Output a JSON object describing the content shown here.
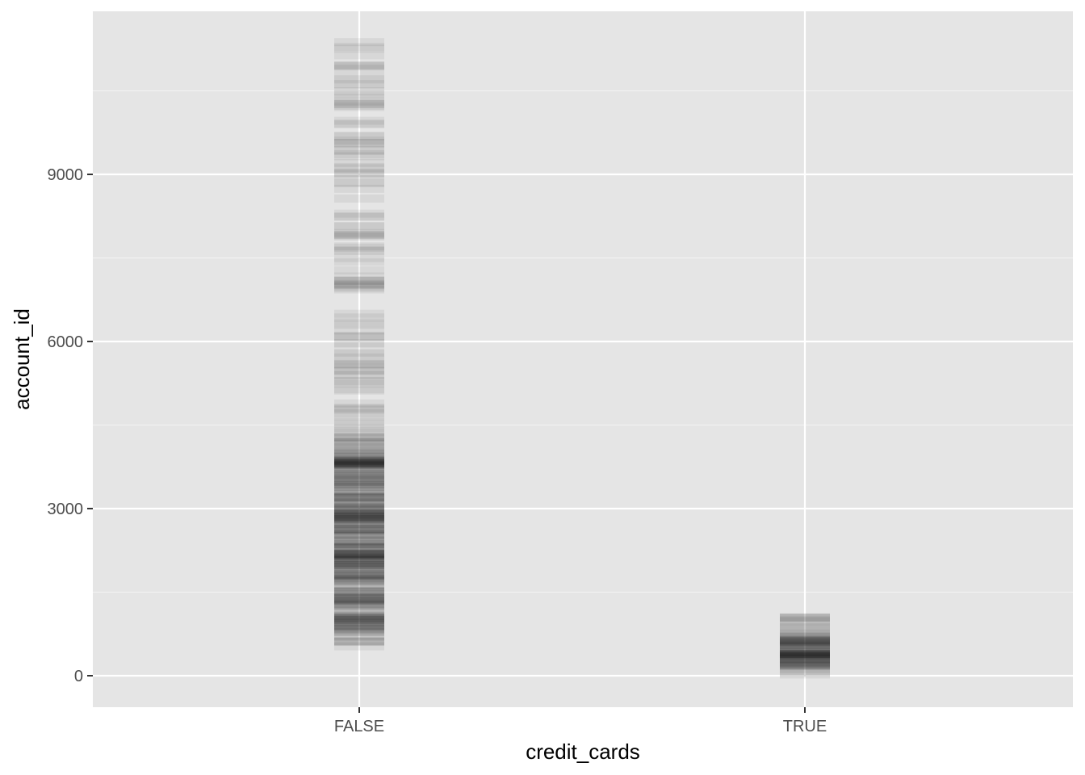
{
  "chart_data": {
    "type": "scatter",
    "title": "",
    "xlabel": "credit_cards",
    "ylabel": "account_id",
    "categories": [
      "FALSE",
      "TRUE"
    ],
    "x_tick_labels": [
      "FALSE",
      "TRUE"
    ],
    "y_ticks": [
      0,
      3000,
      6000,
      9000
    ],
    "y_tick_labels": [
      "0",
      "3000",
      "6000",
      "9000"
    ],
    "ylim": [
      -550,
      11930
    ],
    "grid": true,
    "legend": "none",
    "point_shape": "horizontal dash, semi-transparent black",
    "point_opacity": 0.06,
    "series": [
      {
        "category": "FALSE",
        "density_profile": [
          {
            "from": 450,
            "to": 700,
            "count": 6
          },
          {
            "from": 700,
            "to": 1500,
            "count": 55
          },
          {
            "from": 1500,
            "to": 2500,
            "count": 80
          },
          {
            "from": 2500,
            "to": 3500,
            "count": 80
          },
          {
            "from": 3500,
            "to": 3900,
            "count": 40
          },
          {
            "from": 3900,
            "to": 4500,
            "count": 22
          },
          {
            "from": 4500,
            "to": 5000,
            "count": 8
          },
          {
            "from": 5000,
            "to": 5600,
            "count": 12
          },
          {
            "from": 5600,
            "to": 6300,
            "count": 10
          },
          {
            "from": 6300,
            "to": 6700,
            "count": 4
          },
          {
            "from": 6700,
            "to": 7100,
            "count": 9
          },
          {
            "from": 7100,
            "to": 7600,
            "count": 4
          },
          {
            "from": 7600,
            "to": 8300,
            "count": 14
          },
          {
            "from": 8300,
            "to": 9000,
            "count": 5
          },
          {
            "from": 9000,
            "to": 9500,
            "count": 9
          },
          {
            "from": 9500,
            "to": 10200,
            "count": 9
          },
          {
            "from": 10200,
            "to": 10800,
            "count": 12
          },
          {
            "from": 10800,
            "to": 11500,
            "count": 8
          }
        ]
      },
      {
        "category": "TRUE",
        "density_profile": [
          {
            "from": 20,
            "to": 150,
            "count": 4
          },
          {
            "from": 150,
            "to": 650,
            "count": 60
          },
          {
            "from": 650,
            "to": 900,
            "count": 12
          },
          {
            "from": 900,
            "to": 1100,
            "count": 6
          }
        ]
      }
    ]
  },
  "colors": {
    "panel_background": "#e5e5e5",
    "grid_major": "#ffffff",
    "grid_minor": "#f2f2f2",
    "point": "#000000",
    "tick_label": "#4d4d4d",
    "axis_title": "#000000",
    "tick_mark": "#333333"
  }
}
